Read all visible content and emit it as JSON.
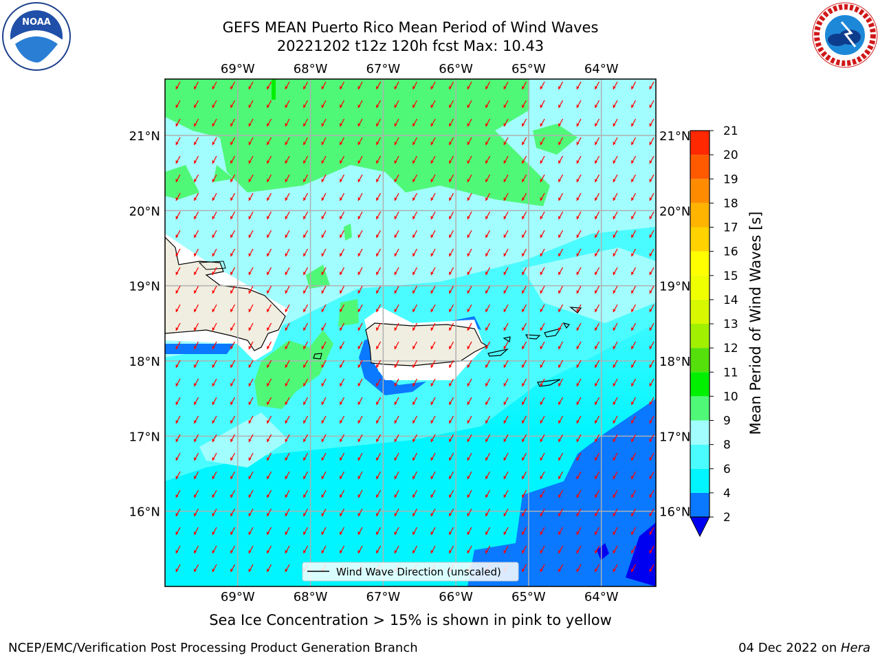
{
  "header": {
    "title_line1": "GEFS MEAN Puerto Rico Mean Period of Wind Waves",
    "title_line2": "20221202 t12z 120h fcst   Max: 10.43"
  },
  "logos": {
    "left": "noaa-logo",
    "right": "nws-logo",
    "noaa_text": "NOAA"
  },
  "map": {
    "lon_labels": [
      "69°W",
      "68°W",
      "67°W",
      "66°W",
      "65°W",
      "64°W"
    ],
    "lat_labels": [
      "21°N",
      "20°N",
      "19°N",
      "18°N",
      "17°N",
      "16°N"
    ],
    "lon_range": [
      -70.0,
      -63.25
    ],
    "lat_range": [
      15.0,
      21.75
    ],
    "grid": true,
    "land_color": "#efeee0",
    "arrow_color": "#ff0000",
    "legend_label": "Wind Wave Direction (unscaled)",
    "legend_position": "bottom-center"
  },
  "colorbar": {
    "label": "Mean Period of Wind Waves [s]",
    "ticks": [
      "2",
      "4",
      "6",
      "8",
      "9",
      "10",
      "11",
      "12",
      "13",
      "14",
      "15",
      "16",
      "17",
      "18",
      "19",
      "20",
      "21"
    ],
    "colors": [
      "#0a78ff",
      "#00f5ff",
      "#4afcff",
      "#a2fdff",
      "#50f878",
      "#00f000",
      "#55e00c",
      "#a0f000",
      "#d8f800",
      "#f0ff00",
      "#ffff00",
      "#ffd200",
      "#ffb400",
      "#ff8c00",
      "#ff5a00",
      "#ff2800",
      "#ff0000"
    ],
    "under_color": "#0000f0"
  },
  "footer": {
    "ice_note": "Sea Ice Concentration > 15% is shown in pink to yellow",
    "credit": "NCEP/EMC/Verification Post Processing Product Generation Branch",
    "date_prefix": "04 Dec 2022 on ",
    "date_host": "Hera"
  }
}
